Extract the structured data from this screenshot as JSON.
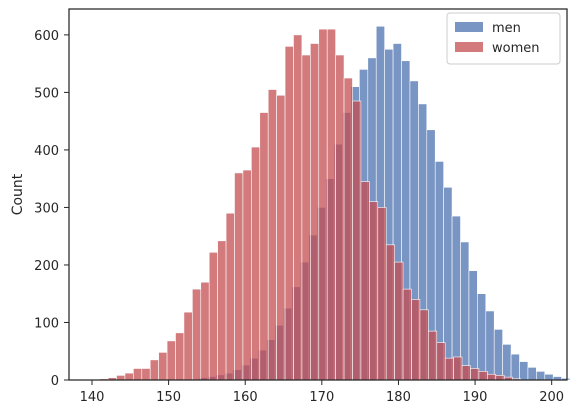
{
  "chart_data": {
    "type": "bar",
    "title": "",
    "xlabel": "",
    "ylabel": "Count",
    "xlim": [
      137,
      202
    ],
    "ylim": [
      0,
      645
    ],
    "xticks": [
      140,
      150,
      160,
      170,
      180,
      190,
      200
    ],
    "yticks": [
      0,
      100,
      200,
      300,
      400,
      500,
      600
    ],
    "grid": false,
    "legend": {
      "placement": "top-right",
      "entries": [
        "men",
        "women"
      ]
    },
    "series": [
      {
        "name": "men",
        "color": "#4c72b0",
        "bin_start": 154.0,
        "bin_width": 1.1,
        "values": [
          4,
          6,
          9,
          12,
          18,
          26,
          38,
          52,
          70,
          95,
          125,
          162,
          205,
          252,
          300,
          350,
          410,
          465,
          510,
          540,
          560,
          615,
          575,
          585,
          555,
          520,
          480,
          435,
          380,
          335,
          285,
          240,
          190,
          150,
          120,
          88,
          62,
          45,
          32,
          22,
          15,
          10,
          6,
          3
        ]
      },
      {
        "name": "women",
        "color": "#c44e52",
        "bin_start": 141.0,
        "bin_width": 1.1,
        "values": [
          2,
          4,
          8,
          12,
          20,
          20,
          35,
          48,
          68,
          82,
          118,
          158,
          170,
          222,
          242,
          290,
          360,
          365,
          405,
          465,
          505,
          495,
          580,
          600,
          565,
          585,
          610,
          610,
          565,
          525,
          485,
          345,
          310,
          300,
          235,
          205,
          158,
          140,
          122,
          85,
          65,
          38,
          40,
          25,
          20,
          15,
          10,
          8,
          5,
          2
        ]
      }
    ]
  }
}
